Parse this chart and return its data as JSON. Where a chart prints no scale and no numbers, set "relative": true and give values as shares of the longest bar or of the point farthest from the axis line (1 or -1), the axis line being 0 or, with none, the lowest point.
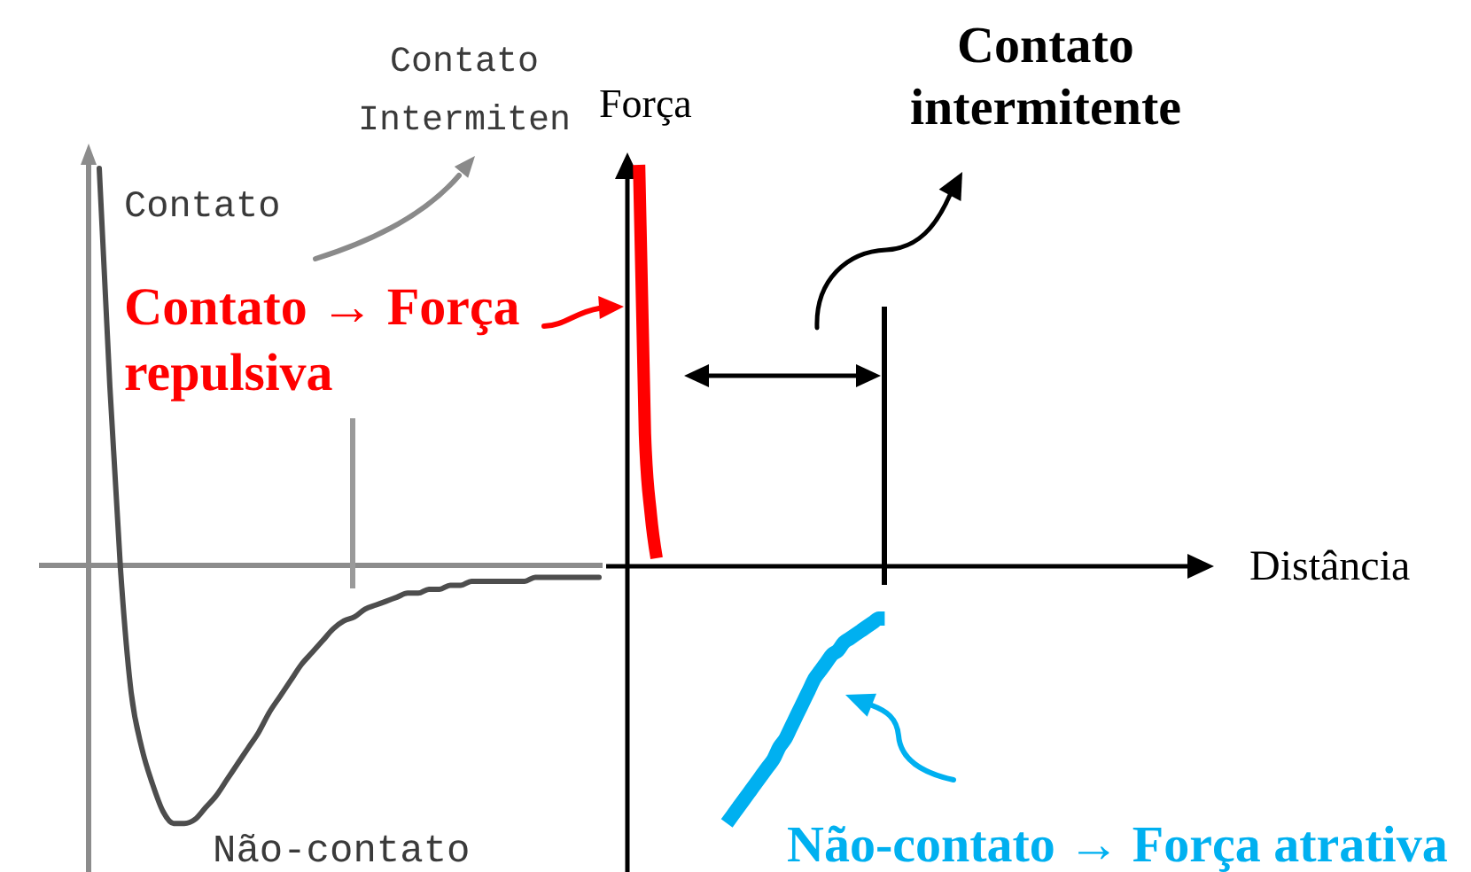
{
  "chart_data": [
    {
      "type": "line",
      "relative": true,
      "categories": [
        null,
        null,
        null,
        null,
        null,
        null,
        null,
        null,
        null,
        null,
        null,
        null,
        null,
        null,
        null,
        null,
        null,
        null,
        null,
        null,
        null,
        null,
        null,
        null,
        null,
        null,
        null,
        null,
        null,
        null,
        null,
        null,
        null,
        null,
        null,
        null,
        null,
        null,
        null,
        null,
        null,
        null,
        null,
        null,
        null,
        null,
        null,
        null,
        null
      ],
      "series": [
        {
          "color": "#4d4d4d",
          "values": [
            null,
            1.0,
            0.45,
            -0.01,
            -0.32,
            -0.46,
            -0.55,
            -0.62,
            -0.65,
            -0.65,
            -0.64,
            -0.61,
            -0.58,
            -0.54,
            -0.5,
            -0.46,
            -0.42,
            -0.37,
            -0.33,
            -0.29,
            -0.25,
            -0.22,
            -0.19,
            -0.16,
            -0.14,
            -0.13,
            -0.11,
            -0.1,
            -0.09,
            -0.08,
            -0.07,
            -0.07,
            -0.06,
            -0.06,
            -0.05,
            -0.05,
            -0.04,
            -0.04,
            -0.04,
            -0.04,
            -0.04,
            -0.04,
            -0.03,
            -0.03,
            -0.03,
            -0.03,
            -0.03,
            -0.03,
            -0.03
          ]
        }
      ],
      "annotations": [
        "Contato",
        "Contato Intermiten",
        "Não-contato"
      ]
    },
    {
      "type": "line",
      "relative": true,
      "xlabel": "Distância",
      "ylabel": "Força",
      "categories": [
        null,
        null,
        null,
        null,
        null,
        null,
        null,
        null,
        null,
        null,
        null,
        null,
        null,
        null,
        null,
        null,
        null,
        null,
        null,
        null,
        null,
        null,
        null,
        null,
        null,
        null,
        null,
        null,
        null,
        null,
        null,
        null,
        null,
        null,
        null,
        null,
        null,
        null,
        null,
        null,
        null,
        null,
        null,
        null,
        null,
        null,
        null,
        null,
        null,
        null,
        null,
        null,
        null,
        null,
        null,
        null,
        null,
        null,
        null,
        null,
        null,
        null,
        null,
        null,
        null,
        null,
        null,
        null,
        null,
        null,
        null,
        null,
        null,
        null,
        null,
        null,
        null,
        null,
        null,
        null,
        null,
        null,
        null,
        null,
        null,
        null,
        null,
        null,
        null,
        null,
        null,
        null,
        null,
        null,
        null,
        null,
        null,
        null,
        null,
        null,
        null
      ],
      "series": [
        {
          "name": "Contato → Força repulsiva",
          "color": "#ff0000",
          "values": [
            null,
            null,
            1,
            0.33,
            0.13,
            0.02,
            null,
            null,
            null,
            null,
            null,
            null,
            null,
            null,
            null,
            null,
            null,
            null,
            null,
            null,
            null,
            null,
            null,
            null,
            null,
            null,
            null,
            null,
            null,
            null,
            null,
            null,
            null,
            null,
            null,
            null,
            null,
            null,
            null,
            null,
            null,
            null,
            null,
            null,
            null,
            null,
            null,
            null,
            null,
            null,
            null,
            null,
            null,
            null,
            null,
            null,
            null,
            null,
            null,
            null,
            null,
            null,
            null,
            null,
            null,
            null,
            null,
            null,
            null,
            null,
            null,
            null,
            null,
            null,
            null,
            null,
            null,
            null,
            null,
            null,
            null,
            null,
            null,
            null,
            null,
            null,
            null,
            null,
            null,
            null,
            null,
            null,
            null,
            null,
            null,
            null,
            null,
            null,
            null,
            null,
            null
          ]
        },
        {
          "name": "Não-contato → Força atrativa",
          "color": "#00b0f0",
          "values": [
            null,
            null,
            null,
            null,
            null,
            null,
            null,
            null,
            null,
            null,
            null,
            null,
            null,
            null,
            null,
            null,
            null,
            -0.64,
            -0.62,
            -0.6,
            -0.58,
            -0.56,
            -0.54,
            -0.52,
            -0.5,
            -0.48,
            -0.45,
            -0.43,
            -0.4,
            -0.37,
            -0.34,
            -0.31,
            -0.28,
            -0.26,
            -0.24,
            -0.22,
            -0.21,
            -0.19,
            -0.18,
            -0.17,
            -0.16,
            -0.15,
            -0.14,
            -0.13,
            -0.13,
            null,
            null,
            null,
            null,
            null,
            null,
            null,
            null,
            null,
            null,
            null,
            null,
            null,
            null,
            null,
            null,
            null,
            null,
            null,
            null,
            null,
            null,
            null,
            null,
            null,
            null,
            null,
            null,
            null,
            null,
            null,
            null,
            null,
            null,
            null,
            null,
            null,
            null,
            null,
            null,
            null,
            null,
            null,
            null,
            null,
            null,
            null,
            null,
            null,
            null,
            null,
            null,
            null,
            null,
            null,
            null
          ]
        }
      ],
      "annotations": [
        "Contato intermitente"
      ]
    }
  ]
}
